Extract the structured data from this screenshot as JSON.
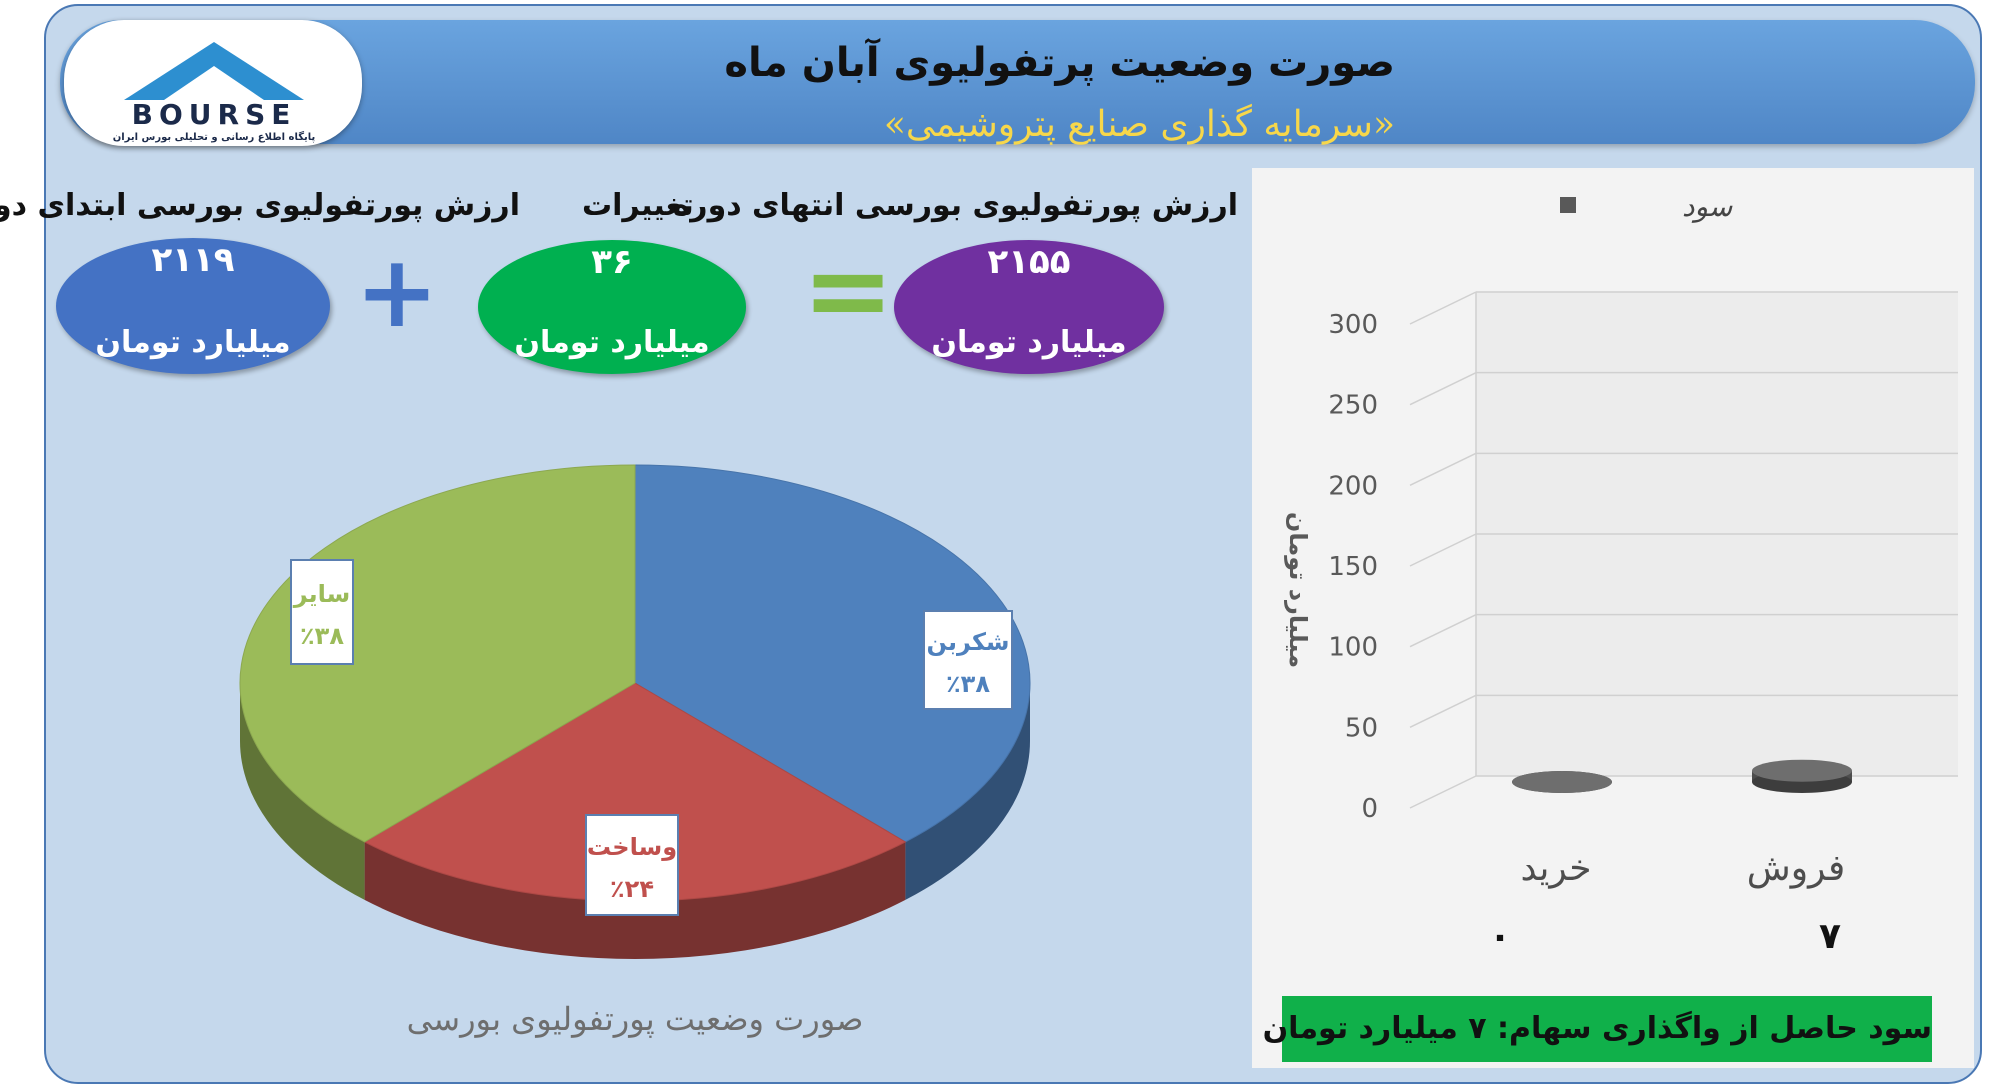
{
  "header": {
    "title": "صورت وضعیت پرتفولیوی آبان ماه",
    "subtitle": "«سرمایه گذاری صنایع پتروشیمی»"
  },
  "logo": {
    "name": "BOURSE",
    "tagline": "پایگاه اطلاع رسانی و تحلیلی بورس ایران"
  },
  "summary": {
    "start_label": "ارزش پورتفولیوی بورسی ابتدای دوره",
    "start_value": "۲۱۱۹",
    "change_label": "تغییرات",
    "change_value": "۳۶",
    "end_label": "ارزش پورتفولیوی بورسی انتهای دوره",
    "end_value": "۲۱۵۵",
    "unit": "میلیارد تومان",
    "plus_sign": "+",
    "equals_sign": "=",
    "colors": {
      "start": "#4472c4",
      "change": "#00b050",
      "end": "#7030a0"
    }
  },
  "pie": {
    "caption": "صورت وضعیت پورتفولیوی بورسی"
  },
  "bar": {
    "profit_text": "سود حاصل از واگذاری سهام: ۷ میلیارد تومان"
  },
  "chart_data": [
    {
      "type": "pie",
      "title": "صورت وضعیت پورتفولیوی بورسی",
      "slices": [
        {
          "label": "شکربن",
          "percent_label": "٪۳۸",
          "value": 38,
          "color": "#4f81bd"
        },
        {
          "label": "وساخت",
          "percent_label": "٪۲۴",
          "value": 24,
          "color": "#c0504d"
        },
        {
          "label": "سایر",
          "percent_label": "٪۳۸",
          "value": 38,
          "color": "#9bbb59"
        }
      ]
    },
    {
      "type": "bar",
      "legend": "سود",
      "legend_placement": "top",
      "ylabel": "میلیارد تومان",
      "ylim": [
        0,
        300
      ],
      "yticks": [
        "0",
        "50",
        "100",
        "150",
        "200",
        "250",
        "300"
      ],
      "categories": [
        "خرید",
        "فروش"
      ],
      "values": [
        0,
        7
      ],
      "value_labels": [
        "۰",
        "۷"
      ],
      "grid": true,
      "bar_color": "#595959"
    }
  ]
}
